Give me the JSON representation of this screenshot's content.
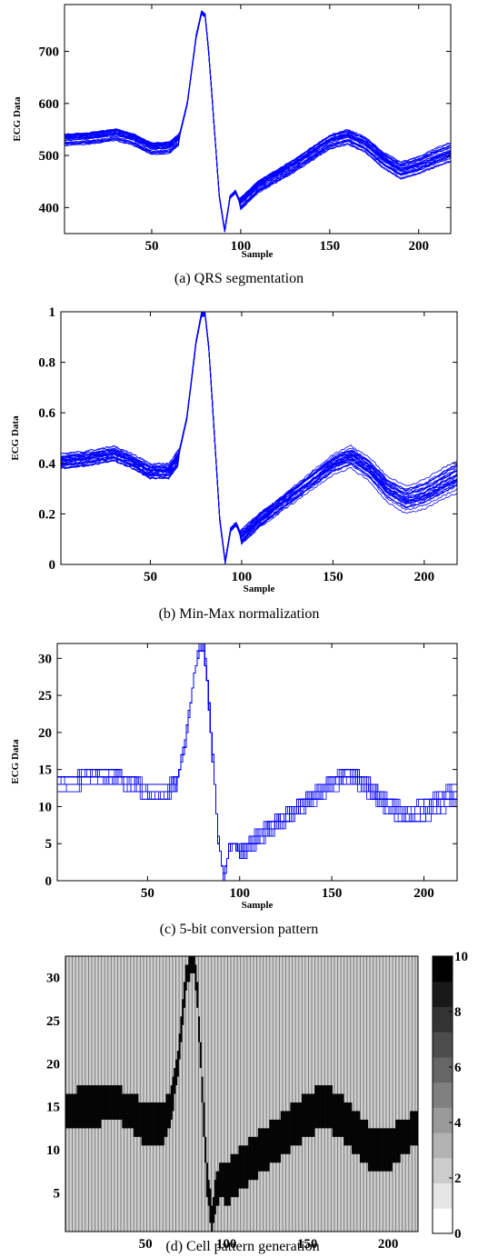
{
  "chart_data": [
    {
      "id": "a",
      "type": "line",
      "caption": "(a) QRS segmentation",
      "xlabel": "Sample",
      "ylabel": "ECG Data",
      "xlim": [
        1,
        218
      ],
      "ylim": [
        350,
        790
      ],
      "xticks": [
        50,
        100,
        150,
        200
      ],
      "yticks": [
        400,
        500,
        600,
        700
      ],
      "grid": false,
      "color": "#0000ff",
      "series_count": 30,
      "template": {
        "x": [
          1,
          15,
          30,
          40,
          50,
          60,
          65,
          70,
          75,
          78,
          80,
          82,
          85,
          88,
          91,
          94,
          97,
          100,
          110,
          130,
          150,
          160,
          170,
          180,
          190,
          200,
          210,
          218
        ],
        "y": [
          530,
          533,
          540,
          530,
          513,
          515,
          530,
          600,
          730,
          775,
          770,
          700,
          560,
          420,
          355,
          420,
          430,
          408,
          440,
          480,
          525,
          535,
          520,
          490,
          470,
          480,
          495,
          505
        ]
      }
    },
    {
      "id": "b",
      "type": "line",
      "caption": "(b) Min-Max normalization",
      "xlabel": "Sample",
      "ylabel": "ECG Data",
      "xlim": [
        1,
        218
      ],
      "ylim": [
        0,
        1
      ],
      "xticks": [
        50,
        100,
        150,
        200
      ],
      "yticks": [
        0,
        0.2,
        0.4,
        0.6,
        0.8,
        1
      ],
      "grid": false,
      "color": "#0000ff",
      "series_count": 30,
      "template": {
        "x": [
          1,
          15,
          30,
          40,
          50,
          60,
          65,
          70,
          75,
          78,
          80,
          82,
          85,
          88,
          91,
          94,
          97,
          100,
          110,
          130,
          150,
          160,
          170,
          180,
          190,
          200,
          210,
          218
        ],
        "y": [
          0.41,
          0.42,
          0.44,
          0.41,
          0.37,
          0.37,
          0.42,
          0.58,
          0.88,
          0.99,
          0.99,
          0.86,
          0.52,
          0.18,
          0.01,
          0.14,
          0.16,
          0.11,
          0.18,
          0.29,
          0.4,
          0.43,
          0.38,
          0.3,
          0.26,
          0.28,
          0.32,
          0.35
        ]
      }
    },
    {
      "id": "c",
      "type": "line",
      "caption": "(c) 5-bit conversion pattern",
      "xlabel": "Sample",
      "ylabel": "ECG Data",
      "xlim": [
        1,
        218
      ],
      "ylim": [
        0,
        32
      ],
      "xticks": [
        50,
        100,
        150,
        200
      ],
      "yticks": [
        0,
        5,
        10,
        15,
        20,
        25,
        30
      ],
      "grid": false,
      "color": "#0000ff",
      "series_count": 24,
      "template": {
        "x": [
          1,
          15,
          30,
          40,
          50,
          60,
          65,
          70,
          75,
          78,
          80,
          82,
          85,
          88,
          91,
          94,
          97,
          100,
          110,
          130,
          150,
          160,
          170,
          180,
          190,
          200,
          210,
          218
        ],
        "y": [
          13,
          13.5,
          14,
          13,
          12,
          12,
          13,
          18.5,
          28,
          31.5,
          31.5,
          27,
          16.5,
          5.5,
          0.3,
          4.5,
          5,
          3.5,
          5.8,
          9.3,
          12.8,
          13.8,
          12,
          9.6,
          8.3,
          8.9,
          10.2,
          11.2
        ]
      }
    },
    {
      "id": "d",
      "type": "heatmap",
      "caption": "(d) Cell pattern generation",
      "xlim": [
        1,
        218
      ],
      "ylim": [
        1,
        32
      ],
      "xticks": [
        50,
        100,
        150,
        200
      ],
      "yticks": [
        5,
        10,
        15,
        20,
        25,
        30
      ],
      "colorbar": {
        "range": [
          0,
          10
        ],
        "ticks": [
          0,
          2,
          4,
          6,
          8,
          10
        ],
        "colormap": "gray-reversed",
        "levels": 11
      },
      "band_lower": {
        "x": [
          1,
          15,
          30,
          40,
          50,
          60,
          65,
          70,
          75,
          78,
          80,
          82,
          85,
          88,
          91,
          94,
          97,
          100,
          110,
          130,
          150,
          160,
          170,
          180,
          190,
          200,
          210,
          218
        ],
        "y": [
          13,
          13,
          14,
          13,
          11,
          11,
          13,
          19,
          29,
          31,
          31,
          27,
          16,
          5,
          1,
          4,
          5,
          4,
          6,
          9,
          12,
          13,
          12,
          10,
          8,
          8,
          10,
          11
        ]
      },
      "band_upper": {
        "x": [
          1,
          15,
          30,
          40,
          50,
          60,
          65,
          70,
          75,
          78,
          80,
          82,
          85,
          88,
          91,
          94,
          97,
          100,
          110,
          130,
          150,
          160,
          170,
          180,
          190,
          200,
          210,
          218
        ],
        "y": [
          16,
          17,
          17,
          16,
          15,
          15,
          16,
          21,
          31,
          32,
          32,
          29,
          18,
          8,
          3,
          7,
          8,
          8,
          10,
          13,
          16,
          17,
          16,
          14,
          12,
          12,
          13,
          14
        ]
      }
    }
  ]
}
